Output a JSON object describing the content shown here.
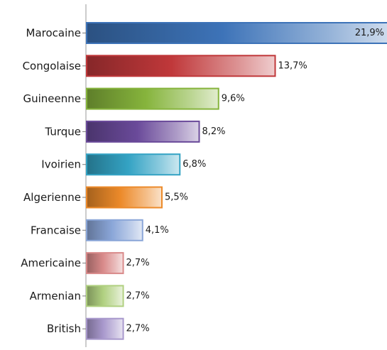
{
  "chart_data": {
    "type": "bar",
    "orientation": "horizontal",
    "categories": [
      "Marocaine",
      "Congolaise",
      "Guineenne",
      "Turque",
      "Ivoirien",
      "Algerienne",
      "Francaise",
      "Americaine",
      "Armenian",
      "British"
    ],
    "values": [
      21.9,
      13.7,
      9.6,
      8.2,
      6.8,
      5.5,
      4.1,
      2.7,
      2.7,
      2.7
    ],
    "value_labels": [
      "21,9%",
      "13,7%",
      "9,6%",
      "8,2%",
      "6,8%",
      "5,5%",
      "4,1%",
      "2,7%",
      "2,7%",
      "2,7%"
    ],
    "colors": [
      "#3d73b8",
      "#c0383a",
      "#86b43c",
      "#6a4a9a",
      "#34a3c4",
      "#ec8a2a",
      "#8aa6d8",
      "#d98a8a",
      "#b0d080",
      "#a898cc"
    ],
    "title": "",
    "xlabel": "",
    "ylabel": "",
    "grid": false,
    "legend": "none"
  }
}
